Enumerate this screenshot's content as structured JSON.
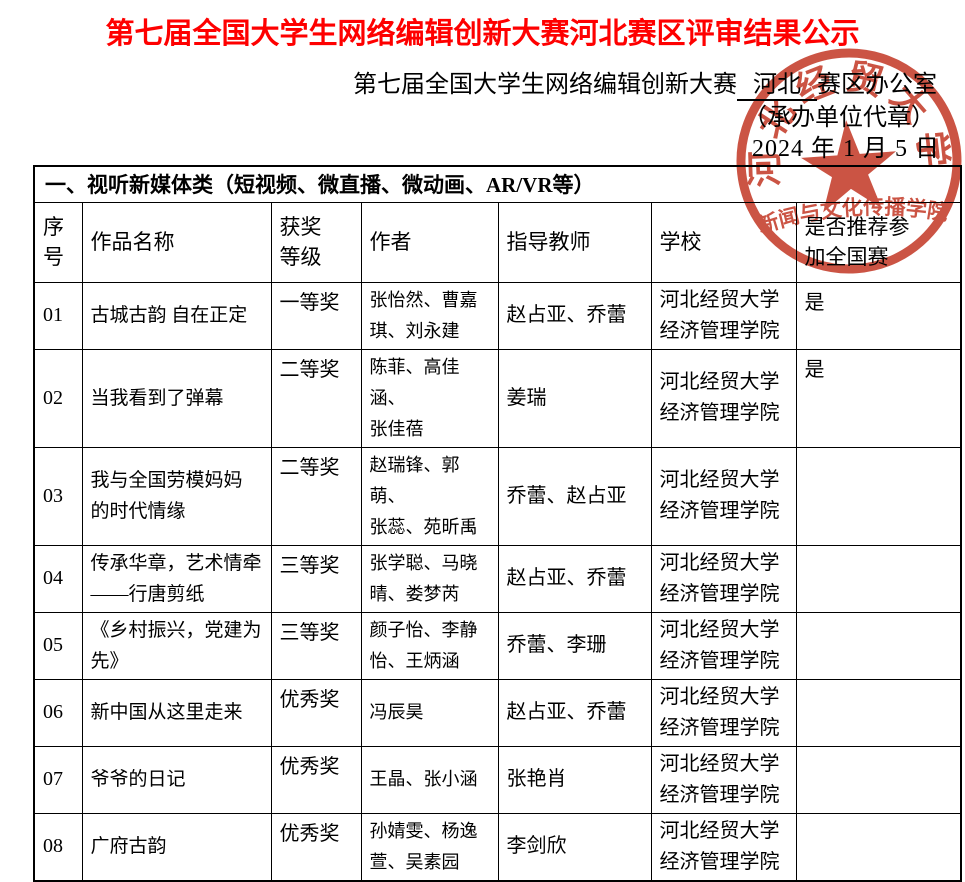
{
  "document": {
    "title": "第七届全国大学生网络编辑创新大赛河北赛区评审结果公示",
    "office_prefix": "第七届全国大学生网络编辑创新大赛",
    "office_region": "河北",
    "office_suffix": "赛区办公室",
    "seal_note": "（承办单位代章）",
    "date": "2024 年 1 月 5 日"
  },
  "stamp": {
    "org": "河北经贸大学",
    "department": "新闻与文化传播学院",
    "color": "#c43a28"
  },
  "colors": {
    "title_red": "#fe0000",
    "stamp_red": "#c43a28",
    "border_black": "#000000"
  },
  "table": {
    "section_title": "一、视听新媒体类（短视频、微直播、微动画、AR/VR等）",
    "columns": [
      "序\n号",
      "作品名称",
      "获奖\n等级",
      "作者",
      "指导教师",
      "学校",
      "是否推荐参\n加全国赛"
    ],
    "col_keys": [
      "no",
      "title",
      "award",
      "authors",
      "advisors",
      "school",
      "recommend"
    ],
    "rows": [
      {
        "no": "01",
        "title": "古城古韵 自在正定",
        "award": "一等奖",
        "authors": "张怡然、曹嘉\n琪、刘永建",
        "advisors": "赵占亚、乔蕾",
        "school": "河北经贸大学\n经济管理学院",
        "recommend": "是"
      },
      {
        "no": "02",
        "title": "当我看到了弹幕",
        "award": "二等奖",
        "authors": "陈菲、高佳涵、\n张佳蓓",
        "advisors": "姜瑞",
        "school": "河北经贸大学\n经济管理学院",
        "recommend": "是"
      },
      {
        "no": "03",
        "title": "我与全国劳模妈妈\n的时代情缘",
        "award": "二等奖",
        "authors": "赵瑞锋、郭萌、\n张蕊、苑昕禹",
        "advisors": "乔蕾、赵占亚",
        "school": "河北经贸大学\n经济管理学院",
        "recommend": ""
      },
      {
        "no": "04",
        "title": "传承华章，艺术情牵\n——行唐剪纸",
        "award": "三等奖",
        "authors": "张学聪、马晓\n晴、娄梦芮",
        "advisors": "赵占亚、乔蕾",
        "school": "河北经贸大学\n经济管理学院",
        "recommend": ""
      },
      {
        "no": "05",
        "title": "《乡村振兴，党建为\n先》",
        "award": "三等奖",
        "authors": "颜子怡、李静\n怡、王炳涵",
        "advisors": "乔蕾、李珊",
        "school": "河北经贸大学\n经济管理学院",
        "recommend": ""
      },
      {
        "no": "06",
        "title": "新中国从这里走来",
        "award": "优秀奖",
        "authors": "冯辰昊",
        "advisors": "赵占亚、乔蕾",
        "school": "河北经贸大学\n经济管理学院",
        "recommend": ""
      },
      {
        "no": "07",
        "title": "爷爷的日记",
        "award": "优秀奖",
        "authors": "王晶、张小涵",
        "advisors": "张艳肖",
        "school": "河北经贸大学\n经济管理学院",
        "recommend": ""
      },
      {
        "no": "08",
        "title": "广府古韵",
        "award": "优秀奖",
        "authors": "孙婧雯、杨逸\n萱、吴素园",
        "advisors": "李剑欣",
        "school": "河北经贸大学\n经济管理学院",
        "recommend": ""
      }
    ]
  }
}
